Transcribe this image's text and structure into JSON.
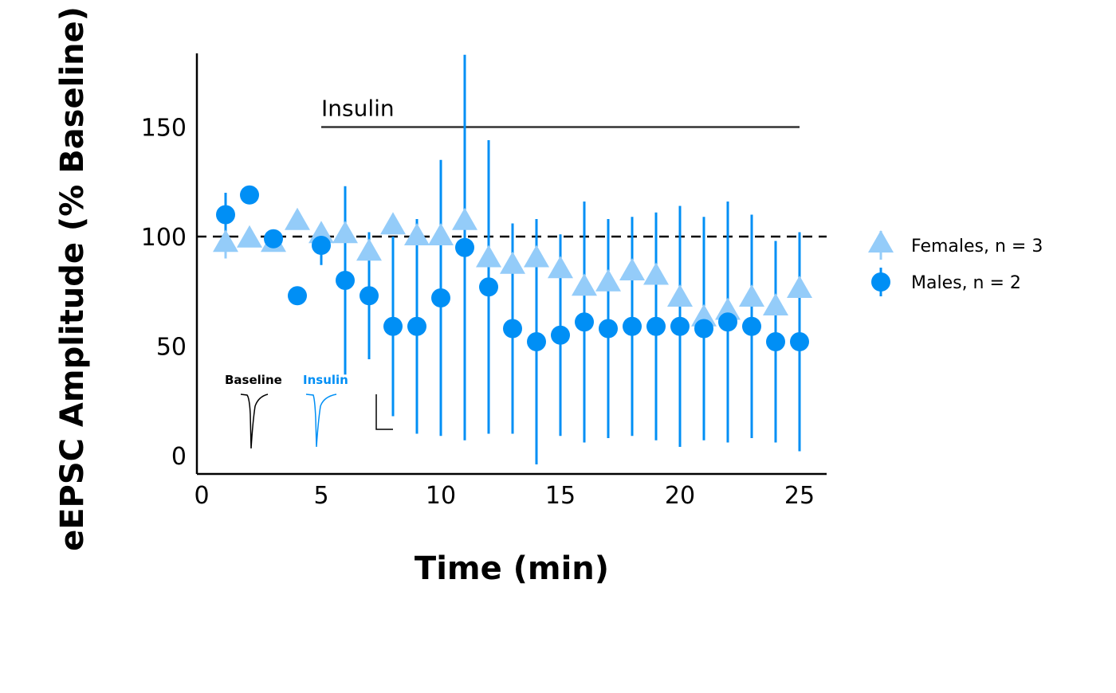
{
  "chart_data": {
    "type": "scatter",
    "title": "",
    "xlabel": "Time (min)",
    "ylabel": "eEPSC Amplitude (% Baseline)",
    "xlim": [
      0,
      26
    ],
    "ylim": [
      -8,
      185
    ],
    "xticks": [
      0,
      5,
      10,
      15,
      20,
      25
    ],
    "yticks": [
      0,
      50,
      100,
      150
    ],
    "baseline_line": {
      "y": 100,
      "style": "dashed"
    },
    "annotation": {
      "label": "Insulin",
      "x_start": 5,
      "x_end": 25,
      "y": 150
    },
    "inset_labels": {
      "baseline": "Baseline",
      "insulin": "Insulin"
    },
    "legend_position": "right",
    "grid": false,
    "series": [
      {
        "name": "Females, n = 3",
        "marker": "triangle",
        "color": "#94CCF9",
        "x": [
          1,
          2,
          3,
          4,
          5,
          6,
          7,
          8,
          9,
          10,
          11,
          12,
          13,
          14,
          15,
          16,
          17,
          18,
          19,
          20,
          21,
          22,
          23,
          24,
          25
        ],
        "y": [
          97,
          99,
          97,
          107,
          101,
          101,
          93,
          105,
          100,
          100,
          107,
          90,
          87,
          90,
          85,
          77,
          79,
          84,
          82,
          72,
          63,
          66,
          72,
          68,
          76
        ],
        "err": [
          7,
          3,
          3,
          3,
          3,
          3,
          3,
          3,
          3,
          3,
          3,
          3,
          3,
          18,
          3,
          3,
          3,
          3,
          3,
          3,
          3,
          3,
          3,
          3,
          3
        ]
      },
      {
        "name": "Males, n = 2",
        "marker": "circle",
        "color": "#008FF5",
        "x": [
          1,
          2,
          3,
          4,
          5,
          6,
          7,
          8,
          9,
          10,
          11,
          12,
          13,
          14,
          15,
          16,
          17,
          18,
          19,
          20,
          21,
          22,
          23,
          24,
          25
        ],
        "y": [
          110,
          119,
          99,
          73,
          96,
          80,
          73,
          59,
          59,
          72,
          95,
          77,
          58,
          52,
          55,
          61,
          58,
          59,
          59,
          59,
          58,
          61,
          59,
          52,
          52
        ],
        "err": [
          10,
          0,
          0,
          0,
          9,
          43,
          29,
          41,
          49,
          63,
          88,
          67,
          48,
          56,
          46,
          55,
          50,
          50,
          52,
          55,
          51,
          55,
          51,
          46,
          50
        ]
      }
    ]
  }
}
